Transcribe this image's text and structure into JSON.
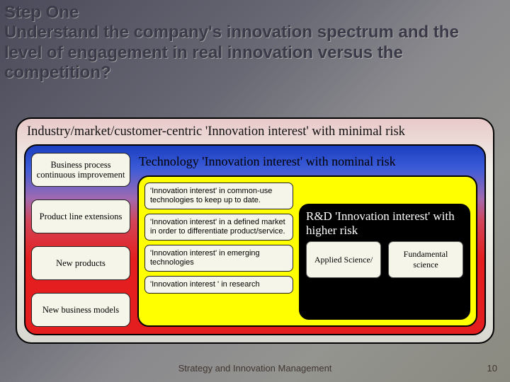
{
  "heading": {
    "step": "Step One",
    "text": "Understand the company's innovation spectrum and the level of engagement in real innovation versus the competition?",
    "fontsize": 24,
    "color": "#3a3a48"
  },
  "background": {
    "gradient": [
      "#4a4a5a",
      "#696975",
      "#8a8a8e",
      "#949490",
      "#8a8a80"
    ]
  },
  "layers": {
    "outer": {
      "title": "Industry/market/customer-centric 'Innovation interest' with minimal risk",
      "title_fontsize": 18.5,
      "bg_gradient": [
        "#e8c9c9",
        "#f0f0e8",
        "#f2f2ea",
        "#d8d8d0"
      ],
      "border_color": "#000000",
      "border_radius": 22
    },
    "mid": {
      "title": "Technology 'Innovation interest' with nominal risk",
      "title_fontsize": 18,
      "bg_gradient": [
        "#1c3fc0",
        "#3b5bd8",
        "#a06ab0",
        "#d2455a",
        "#e41e1e"
      ],
      "border_color": "#000000",
      "border_radius": 18,
      "left_items": [
        "Business process continuous improvement",
        "Product line extensions",
        "New products",
        "New business models"
      ],
      "left_box_bg": "#f5f5e9",
      "left_box_fontsize": 12.5
    },
    "inner": {
      "bg_color": "#ffff00",
      "border_color": "#000000",
      "border_radius": 16,
      "items": [
        "'Innovation interest' in common-use technologies to keep up to date.",
        "'Innovation interest' in a defined market in order to differentiate product/service.",
        "'Innovation interest' in emerging technologies",
        "'Innovation interest ' in research"
      ],
      "item_bg": "#f5f5e9",
      "item_fontsize": 11
    },
    "core": {
      "title": "R&D 'Innovation interest' with higher risk",
      "title_fontsize": 17,
      "title_color": "#ffffff",
      "bg_color": "#000000",
      "border_radius": 14,
      "items": [
        "Applied Science/",
        "Fundamental science"
      ],
      "item_bg": "#f5f5e9",
      "item_fontsize": 12
    }
  },
  "footer": {
    "text": "Strategy and Innovation Management",
    "page": "10",
    "color": "#403530",
    "fontsize": 13
  }
}
